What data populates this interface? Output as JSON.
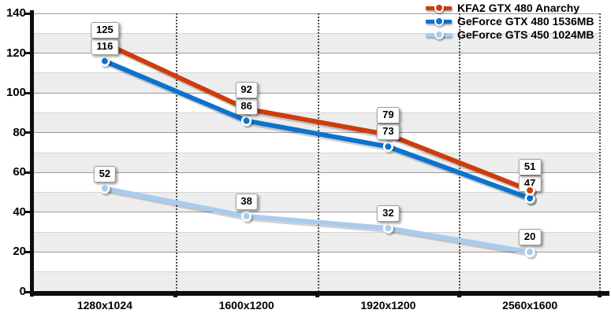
{
  "chart_data": {
    "type": "line",
    "title": "",
    "xlabel": "",
    "ylabel": "",
    "categories": [
      "1280x1024",
      "1600x1200",
      "1920x1200",
      "2560x1600"
    ],
    "series": [
      {
        "name": "KFA2 GTX 480 Anarchy",
        "color": "#cc3d0e",
        "values": [
          125,
          92,
          79,
          51
        ]
      },
      {
        "name": "GeForce GTX 480 1536MB",
        "color": "#0d73cd",
        "values": [
          116,
          86,
          73,
          47
        ]
      },
      {
        "name": "GeForce GTS 450 1024MB",
        "color": "#a8ccee",
        "values": [
          52,
          38,
          32,
          20
        ]
      }
    ],
    "ylim": [
      0,
      140
    ],
    "yticks": [
      0,
      20,
      40,
      60,
      80,
      100,
      120,
      140
    ],
    "grid": {
      "horizontal_major_every": 20,
      "minor_stripes_every": 10,
      "vertical_separators": "dotted-between-categories",
      "stripe_fill": "alternating"
    },
    "data_labels": true,
    "legend_position": "top-right"
  },
  "styles": {
    "background": "#ffffff",
    "stripe_color": "#ededed",
    "grid_major_color": "#9a9a9a",
    "grid_minor_color": "#d5d5d5",
    "separator_color": "#4b4b4b",
    "axis_color": "#0d0d0d",
    "label_box_border": "#9b9b9b",
    "label_box_background": "#ffffff",
    "text_color": "#000000"
  }
}
